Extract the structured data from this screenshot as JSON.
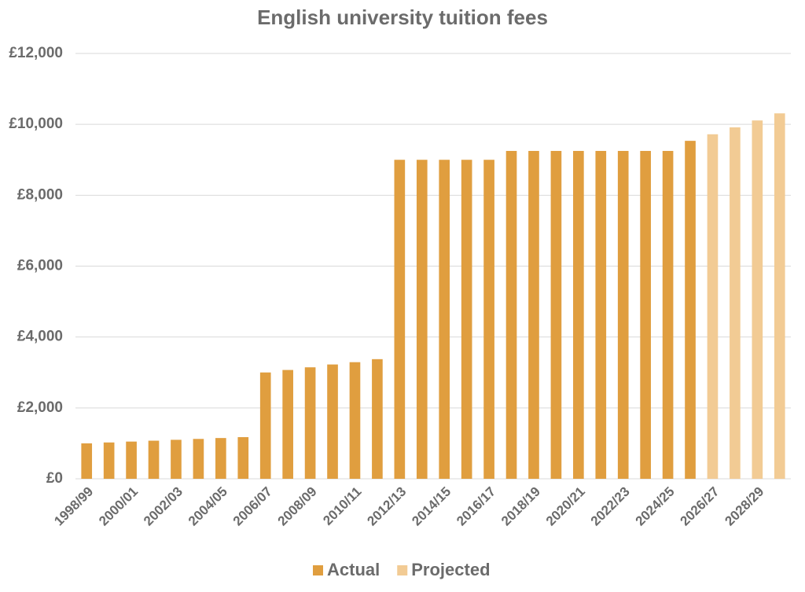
{
  "chart_data": {
    "type": "bar",
    "title": "English university tuition fees",
    "categories": [
      "1998/99",
      null,
      "2000/01",
      null,
      "2002/03",
      null,
      "2004/05",
      null,
      "2006/07",
      null,
      "2008/09",
      null,
      "2010/11",
      null,
      "2012/13",
      null,
      "2014/15",
      null,
      "2016/17",
      null,
      "2018/19",
      null,
      "2020/21",
      null,
      "2022/23",
      null,
      "2024/25",
      null,
      "2026/27",
      null,
      "2028/29",
      null
    ],
    "series": [
      {
        "name": "Actual",
        "color": "#e09e3f",
        "values": [
          1000,
          1025,
          1050,
          1075,
          1100,
          1125,
          1150,
          1175,
          3000,
          3070,
          3145,
          3225,
          3290,
          3375,
          9000,
          9000,
          9000,
          9000,
          9000,
          9250,
          9250,
          9250,
          9250,
          9250,
          9250,
          9250,
          9250,
          9535,
          null,
          null,
          null,
          null
        ]
      },
      {
        "name": "Projected",
        "color": "#f2cb94",
        "values": [
          null,
          null,
          null,
          null,
          null,
          null,
          null,
          null,
          null,
          null,
          null,
          null,
          null,
          null,
          null,
          null,
          null,
          null,
          null,
          null,
          null,
          null,
          null,
          null,
          null,
          null,
          null,
          null,
          9720,
          9915,
          10110,
          10310
        ]
      }
    ],
    "ylim": [
      0,
      12000
    ],
    "yticks": [
      {
        "value": 0,
        "label": "£0"
      },
      {
        "value": 2000,
        "label": "£2,000"
      },
      {
        "value": 4000,
        "label": "£4,000"
      },
      {
        "value": 6000,
        "label": "£6,000"
      },
      {
        "value": 8000,
        "label": "£8,000"
      },
      {
        "value": 10000,
        "label": "£10,000"
      },
      {
        "value": 12000,
        "label": "£12,000"
      }
    ],
    "grid": true,
    "legend": "bottom"
  }
}
